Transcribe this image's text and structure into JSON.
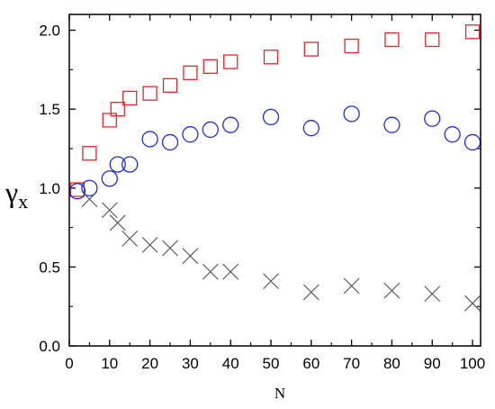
{
  "chart_data": {
    "type": "scatter",
    "xlabel": "N",
    "ylabel": "γ",
    "ylabel_sub": "x",
    "xlim": [
      0,
      102
    ],
    "ylim": [
      0.0,
      2.1
    ],
    "xticks": [
      0,
      10,
      20,
      30,
      40,
      50,
      60,
      70,
      80,
      90,
      100
    ],
    "yticks": [
      0.0,
      0.5,
      1.0,
      1.5,
      2.0
    ],
    "ytick_labels": [
      "0.0",
      "0.5",
      "1.0",
      "1.5",
      "2.0"
    ],
    "grid": false,
    "series": [
      {
        "marker": "square",
        "color": "#e8262a",
        "x": [
          2,
          5,
          10,
          12,
          15,
          20,
          25,
          30,
          35,
          40,
          50,
          60,
          70,
          80,
          90,
          100
        ],
        "y": [
          0.99,
          1.22,
          1.43,
          1.5,
          1.57,
          1.6,
          1.65,
          1.73,
          1.77,
          1.8,
          1.83,
          1.88,
          1.9,
          1.94,
          1.94,
          1.99
        ]
      },
      {
        "marker": "circle",
        "color": "#1f2ee0",
        "x": [
          2,
          5,
          10,
          12,
          15,
          20,
          25,
          30,
          35,
          40,
          50,
          60,
          70,
          80,
          90,
          95,
          100
        ],
        "y": [
          0.98,
          1.0,
          1.06,
          1.15,
          1.15,
          1.31,
          1.29,
          1.34,
          1.37,
          1.4,
          1.45,
          1.38,
          1.47,
          1.4,
          1.44,
          1.34,
          1.29
        ]
      },
      {
        "marker": "cross",
        "color": "#505050",
        "x": [
          5,
          10,
          12,
          15,
          20,
          25,
          30,
          35,
          40,
          50,
          60,
          70,
          80,
          90,
          100
        ],
        "y": [
          0.93,
          0.86,
          0.78,
          0.68,
          0.64,
          0.62,
          0.57,
          0.47,
          0.47,
          0.41,
          0.34,
          0.38,
          0.35,
          0.33,
          0.27
        ]
      }
    ]
  }
}
